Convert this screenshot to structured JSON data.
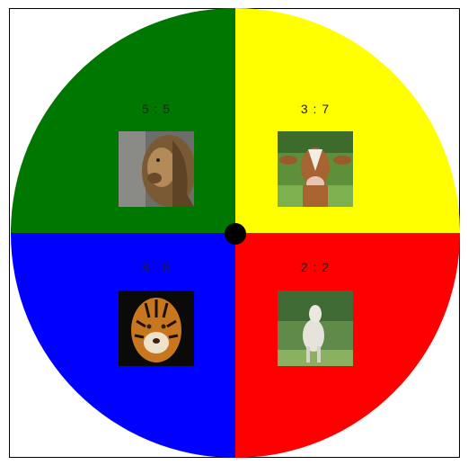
{
  "wheel": {
    "segments": [
      {
        "id": "top-left",
        "color": "#007700",
        "score": "5 : 5",
        "animal": "lion-image"
      },
      {
        "id": "top-right",
        "color": "#ffff00",
        "score": "3 : 7",
        "animal": "cow-image"
      },
      {
        "id": "bottom-left",
        "color": "#0000ff",
        "score": "8 : 8",
        "animal": "tiger-image"
      },
      {
        "id": "bottom-right",
        "color": "#ff0000",
        "score": "2 : 2",
        "animal": "lamb-image"
      }
    ]
  }
}
